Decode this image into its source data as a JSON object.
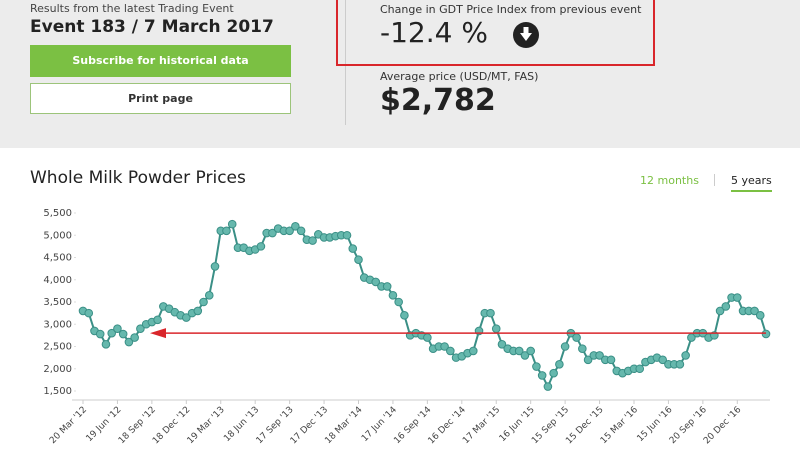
{
  "header": {
    "latest_label": "Results from the latest Trading Event",
    "event": "Event 183 / 7 March 2017",
    "subscribe_button": "Subscribe for historical data",
    "print_button": "Print page",
    "change_label": "Change in GDT Price Index from previous event",
    "change_value": "-12.4 %",
    "average_label": "Average price (USD/MT, FAS)",
    "average_value": "$2,782"
  },
  "toggles": [
    "12 months",
    "5 years"
  ],
  "chart_data": {
    "type": "line",
    "title": "Whole Milk Powder Prices",
    "categories": [
      "20 Mar '12",
      null,
      null,
      null,
      null,
      null,
      "19 Jun '12",
      null,
      null,
      null,
      null,
      null,
      "18 Sep '12",
      null,
      null,
      null,
      null,
      null,
      "18 Dec '12",
      null,
      null,
      null,
      null,
      null,
      "19 Mar '13",
      null,
      null,
      null,
      null,
      null,
      "18 Jun '13",
      null,
      null,
      null,
      null,
      null,
      "17 Sep '13",
      null,
      null,
      null,
      null,
      null,
      "17 Dec '13",
      null,
      null,
      null,
      null,
      null,
      "18 Mar '14",
      null,
      null,
      null,
      null,
      null,
      "17 Jun '14",
      null,
      null,
      null,
      null,
      null,
      "16 Sep '14",
      null,
      null,
      null,
      null,
      null,
      "16 Dec '14",
      null,
      null,
      null,
      null,
      null,
      "17 Mar '15",
      null,
      null,
      null,
      null,
      null,
      "16 Jun '15",
      null,
      null,
      null,
      null,
      null,
      "15 Sep '15",
      null,
      null,
      null,
      null,
      null,
      "15 Dec '15",
      null,
      null,
      null,
      null,
      null,
      "15 Mar '16",
      null,
      null,
      null,
      null,
      null,
      "15 Jun '16",
      null,
      null,
      null,
      null,
      null,
      "20 Sep '16",
      null,
      null,
      null,
      null,
      null,
      "20 Dec '16",
      null,
      null,
      null,
      null,
      null
    ],
    "series": [
      {
        "color": "#3a8f86",
        "marker_color": "#66b8ad",
        "values": [
          3300,
          3250,
          2850,
          2780,
          2550,
          2800,
          2900,
          2780,
          2600,
          2700,
          2900,
          3000,
          3050,
          3100,
          3400,
          3350,
          3270,
          3200,
          3150,
          3250,
          3300,
          3500,
          3650,
          4300,
          5100,
          5100,
          5250,
          4720,
          4720,
          4650,
          4680,
          4750,
          5050,
          5050,
          5150,
          5100,
          5100,
          5200,
          5100,
          4900,
          4880,
          5020,
          4950,
          4950,
          4980,
          5000,
          5000,
          4700,
          4450,
          4050,
          4000,
          3950,
          3850,
          3850,
          3650,
          3500,
          3200,
          2750,
          2800,
          2750,
          2700,
          2450,
          2500,
          2500,
          2400,
          2250,
          2280,
          2350,
          2400,
          2850,
          3250,
          3250,
          2900,
          2550,
          2450,
          2400,
          2400,
          2300,
          2400,
          2050,
          1850,
          1600,
          1900,
          2100,
          2500,
          2800,
          2700,
          2450,
          2200,
          2300,
          2300,
          2200,
          2200,
          1950,
          1900,
          1950,
          2000,
          2000,
          2150,
          2200,
          2250,
          2200,
          2100,
          2100,
          2100,
          2300,
          2700,
          2800,
          2800,
          2700,
          2750,
          3300,
          3400,
          3600,
          3600,
          3300,
          3300,
          3300,
          3200,
          2782
        ]
      }
    ],
    "ylim": [
      1400,
      5600
    ],
    "yticks": [
      {
        "value": 1500,
        "label": "1,500"
      },
      {
        "value": 2000,
        "label": "2,000"
      },
      {
        "value": 2500,
        "label": "2,500"
      },
      {
        "value": 3000,
        "label": "3,000"
      },
      {
        "value": 3500,
        "label": "3,500"
      },
      {
        "value": 4000,
        "label": "4,000"
      },
      {
        "value": 4500,
        "label": "4,500"
      },
      {
        "value": 5000,
        "label": "5,000"
      },
      {
        "value": 5500,
        "label": "5,500"
      }
    ],
    "grid": false,
    "highlight_line": 2800,
    "highlight_color": "#d9262b"
  }
}
